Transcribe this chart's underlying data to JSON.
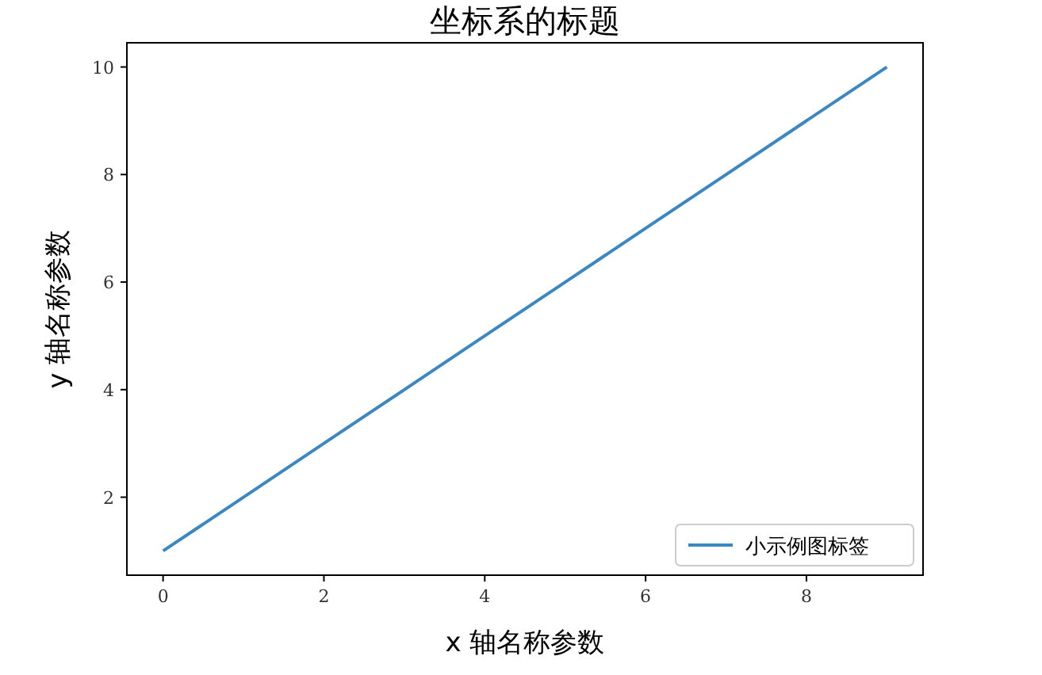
{
  "chart_data": {
    "type": "line",
    "title": "坐标系的标题",
    "xlabel": "x 轴名称参数",
    "ylabel": "y 轴名称参数",
    "x": [
      0,
      1,
      2,
      3,
      4,
      5,
      6,
      7,
      8,
      9
    ],
    "series": [
      {
        "name": "小示例图标签",
        "color": "#3b87c1",
        "values": [
          1,
          2,
          3,
          4,
          5,
          6,
          7,
          8,
          9,
          10
        ]
      }
    ],
    "xlim": [
      -0.45,
      9.45
    ],
    "ylim": [
      0.55,
      10.45
    ],
    "xticks": [
      0,
      2,
      4,
      6,
      8
    ],
    "yticks": [
      2,
      4,
      6,
      8,
      10
    ],
    "legend": "bottom right",
    "grid": false,
    "marker": "none",
    "line_style": "solid"
  }
}
